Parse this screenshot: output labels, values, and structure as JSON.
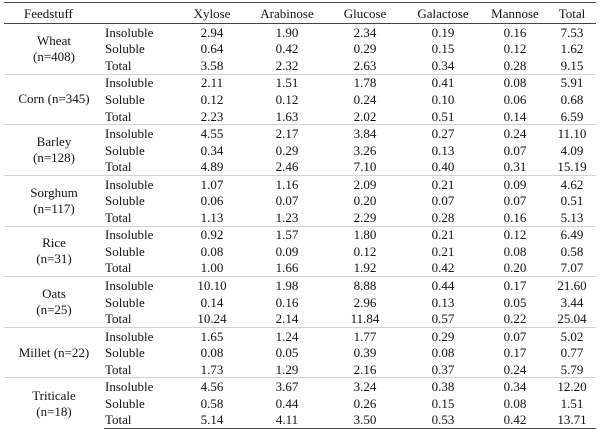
{
  "headers": {
    "feedstuff": "Feedstuff",
    "fraction": "",
    "xylose": "Xylose",
    "arabinose": "Arabinose",
    "glucose": "Glucose",
    "galactose": "Galactose",
    "mannose": "Mannose",
    "total": "Total"
  },
  "groups": [
    {
      "label_line1": "Wheat",
      "label_line2": "(n=408)",
      "rows": [
        {
          "fraction": "Insoluble",
          "xylose": "2.94",
          "arabinose": "1.90",
          "glucose": "2.34",
          "galactose": "0.19",
          "mannose": "0.16",
          "total": "7.53"
        },
        {
          "fraction": "Soluble",
          "xylose": "0.64",
          "arabinose": "0.42",
          "glucose": "0.29",
          "galactose": "0.15",
          "mannose": "0.12",
          "total": "1.62"
        },
        {
          "fraction": "Total",
          "xylose": "3.58",
          "arabinose": "2.32",
          "glucose": "2.63",
          "galactose": "0.34",
          "mannose": "0.28",
          "total": "9.15"
        }
      ]
    },
    {
      "label_line1": "Corn (n=345)",
      "label_line2": "",
      "rows": [
        {
          "fraction": "Insoluble",
          "xylose": "2.11",
          "arabinose": "1.51",
          "glucose": "1.78",
          "galactose": "0.41",
          "mannose": "0.08",
          "total": "5.91"
        },
        {
          "fraction": "Soluble",
          "xylose": "0.12",
          "arabinose": "0.12",
          "glucose": "0.24",
          "galactose": "0.10",
          "mannose": "0.06",
          "total": "0.68"
        },
        {
          "fraction": "Total",
          "xylose": "2.23",
          "arabinose": "1.63",
          "glucose": "2.02",
          "galactose": "0.51",
          "mannose": "0.14",
          "total": "6.59"
        }
      ]
    },
    {
      "label_line1": "Barley",
      "label_line2": "(n=128)",
      "rows": [
        {
          "fraction": "Insoluble",
          "xylose": "4.55",
          "arabinose": "2.17",
          "glucose": "3.84",
          "galactose": "0.27",
          "mannose": "0.24",
          "total": "11.10"
        },
        {
          "fraction": "Soluble",
          "xylose": "0.34",
          "arabinose": "0.29",
          "glucose": "3.26",
          "galactose": "0.13",
          "mannose": "0.07",
          "total": "4.09"
        },
        {
          "fraction": "Total",
          "xylose": "4.89",
          "arabinose": "2.46",
          "glucose": "7.10",
          "galactose": "0.40",
          "mannose": "0.31",
          "total": "15.19"
        }
      ]
    },
    {
      "label_line1": "Sorghum",
      "label_line2": "(n=117)",
      "rows": [
        {
          "fraction": "Insoluble",
          "xylose": "1.07",
          "arabinose": "1.16",
          "glucose": "2.09",
          "galactose": "0.21",
          "mannose": "0.09",
          "total": "4.62"
        },
        {
          "fraction": "Soluble",
          "xylose": "0.06",
          "arabinose": "0.07",
          "glucose": "0.20",
          "galactose": "0.07",
          "mannose": "0.07",
          "total": "0.51"
        },
        {
          "fraction": "Total",
          "xylose": "1.13",
          "arabinose": "1.23",
          "glucose": "2.29",
          "galactose": "0.28",
          "mannose": "0.16",
          "total": "5.13"
        }
      ]
    },
    {
      "label_line1": "Rice",
      "label_line2": "(n=31)",
      "rows": [
        {
          "fraction": "Insoluble",
          "xylose": "0.92",
          "arabinose": "1.57",
          "glucose": "1.80",
          "galactose": "0.21",
          "mannose": "0.12",
          "total": "6.49"
        },
        {
          "fraction": "Soluble",
          "xylose": "0.08",
          "arabinose": "0.09",
          "glucose": "0.12",
          "galactose": "0.21",
          "mannose": "0.08",
          "total": "0.58"
        },
        {
          "fraction": "Total",
          "xylose": "1.00",
          "arabinose": "1.66",
          "glucose": "1.92",
          "galactose": "0.42",
          "mannose": "0.20",
          "total": "7.07"
        }
      ]
    },
    {
      "label_line1": "Oats",
      "label_line2": "(n=25)",
      "rows": [
        {
          "fraction": "Insoluble",
          "xylose": "10.10",
          "arabinose": "1.98",
          "glucose": "8.88",
          "galactose": "0.44",
          "mannose": "0.17",
          "total": "21.60"
        },
        {
          "fraction": "Soluble",
          "xylose": "0.14",
          "arabinose": "0.16",
          "glucose": "2.96",
          "galactose": "0.13",
          "mannose": "0.05",
          "total": "3.44"
        },
        {
          "fraction": "Total",
          "xylose": "10.24",
          "arabinose": "2.14",
          "glucose": "11.84",
          "galactose": "0.57",
          "mannose": "0.22",
          "total": "25.04"
        }
      ]
    },
    {
      "label_line1": "Millet (n=22)",
      "label_line2": "",
      "rows": [
        {
          "fraction": "Insoluble",
          "xylose": "1.65",
          "arabinose": "1.24",
          "glucose": "1.77",
          "galactose": "0.29",
          "mannose": "0.07",
          "total": "5.02"
        },
        {
          "fraction": "Soluble",
          "xylose": "0.08",
          "arabinose": "0.05",
          "glucose": "0.39",
          "galactose": "0.08",
          "mannose": "0.17",
          "total": "0.77"
        },
        {
          "fraction": "Total",
          "xylose": "1.73",
          "arabinose": "1.29",
          "glucose": "2.16",
          "galactose": "0.37",
          "mannose": "0.24",
          "total": "5.79"
        }
      ]
    },
    {
      "label_line1": "Triticale",
      "label_line2": "(n=18)",
      "rows": [
        {
          "fraction": "Insoluble",
          "xylose": "4.56",
          "arabinose": "3.67",
          "glucose": "3.24",
          "galactose": "0.38",
          "mannose": "0.34",
          "total": "12.20"
        },
        {
          "fraction": "Soluble",
          "xylose": "0.58",
          "arabinose": "0.44",
          "glucose": "0.26",
          "galactose": "0.15",
          "mannose": "0.08",
          "total": "1.51"
        },
        {
          "fraction": "Total",
          "xylose": "5.14",
          "arabinose": "4.11",
          "glucose": "3.50",
          "galactose": "0.53",
          "mannose": "0.42",
          "total": "13.71"
        }
      ]
    }
  ]
}
